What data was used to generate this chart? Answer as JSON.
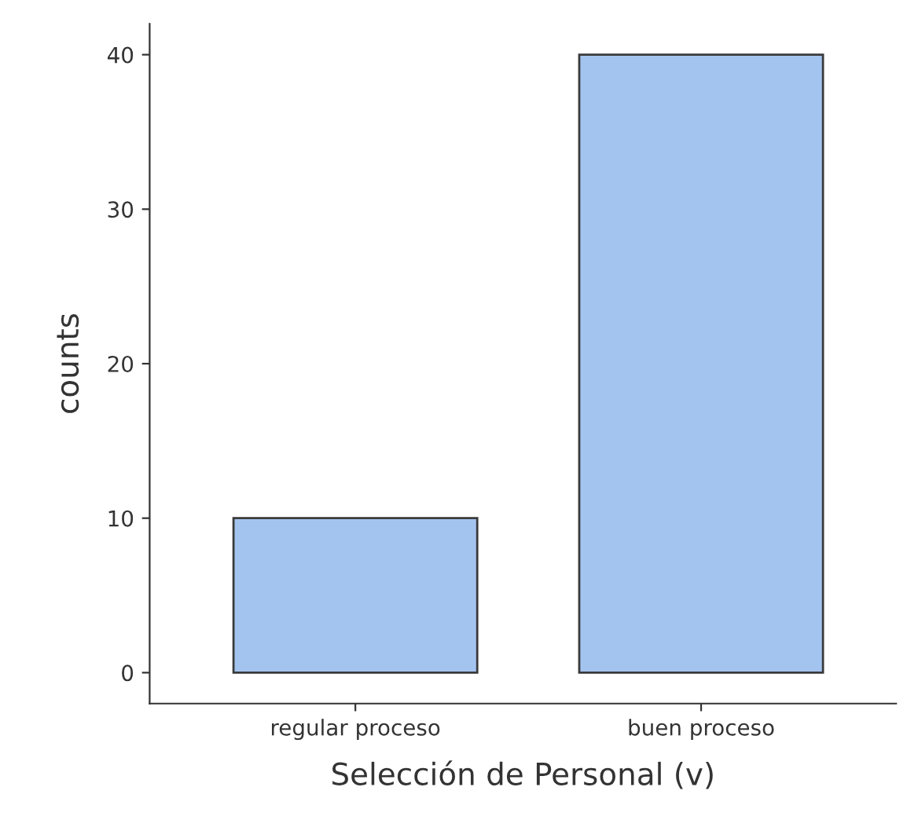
{
  "chart_data": {
    "type": "bar",
    "xlabel": "Selección de Personal (v)",
    "ylabel": "counts",
    "categories": [
      "regular proceso",
      "buen proceso"
    ],
    "values": [
      10,
      40
    ],
    "color": "#a4c4f0",
    "ylim": [
      -2,
      42
    ],
    "yticks": [
      0,
      10,
      20,
      30,
      40
    ],
    "grid": false
  }
}
